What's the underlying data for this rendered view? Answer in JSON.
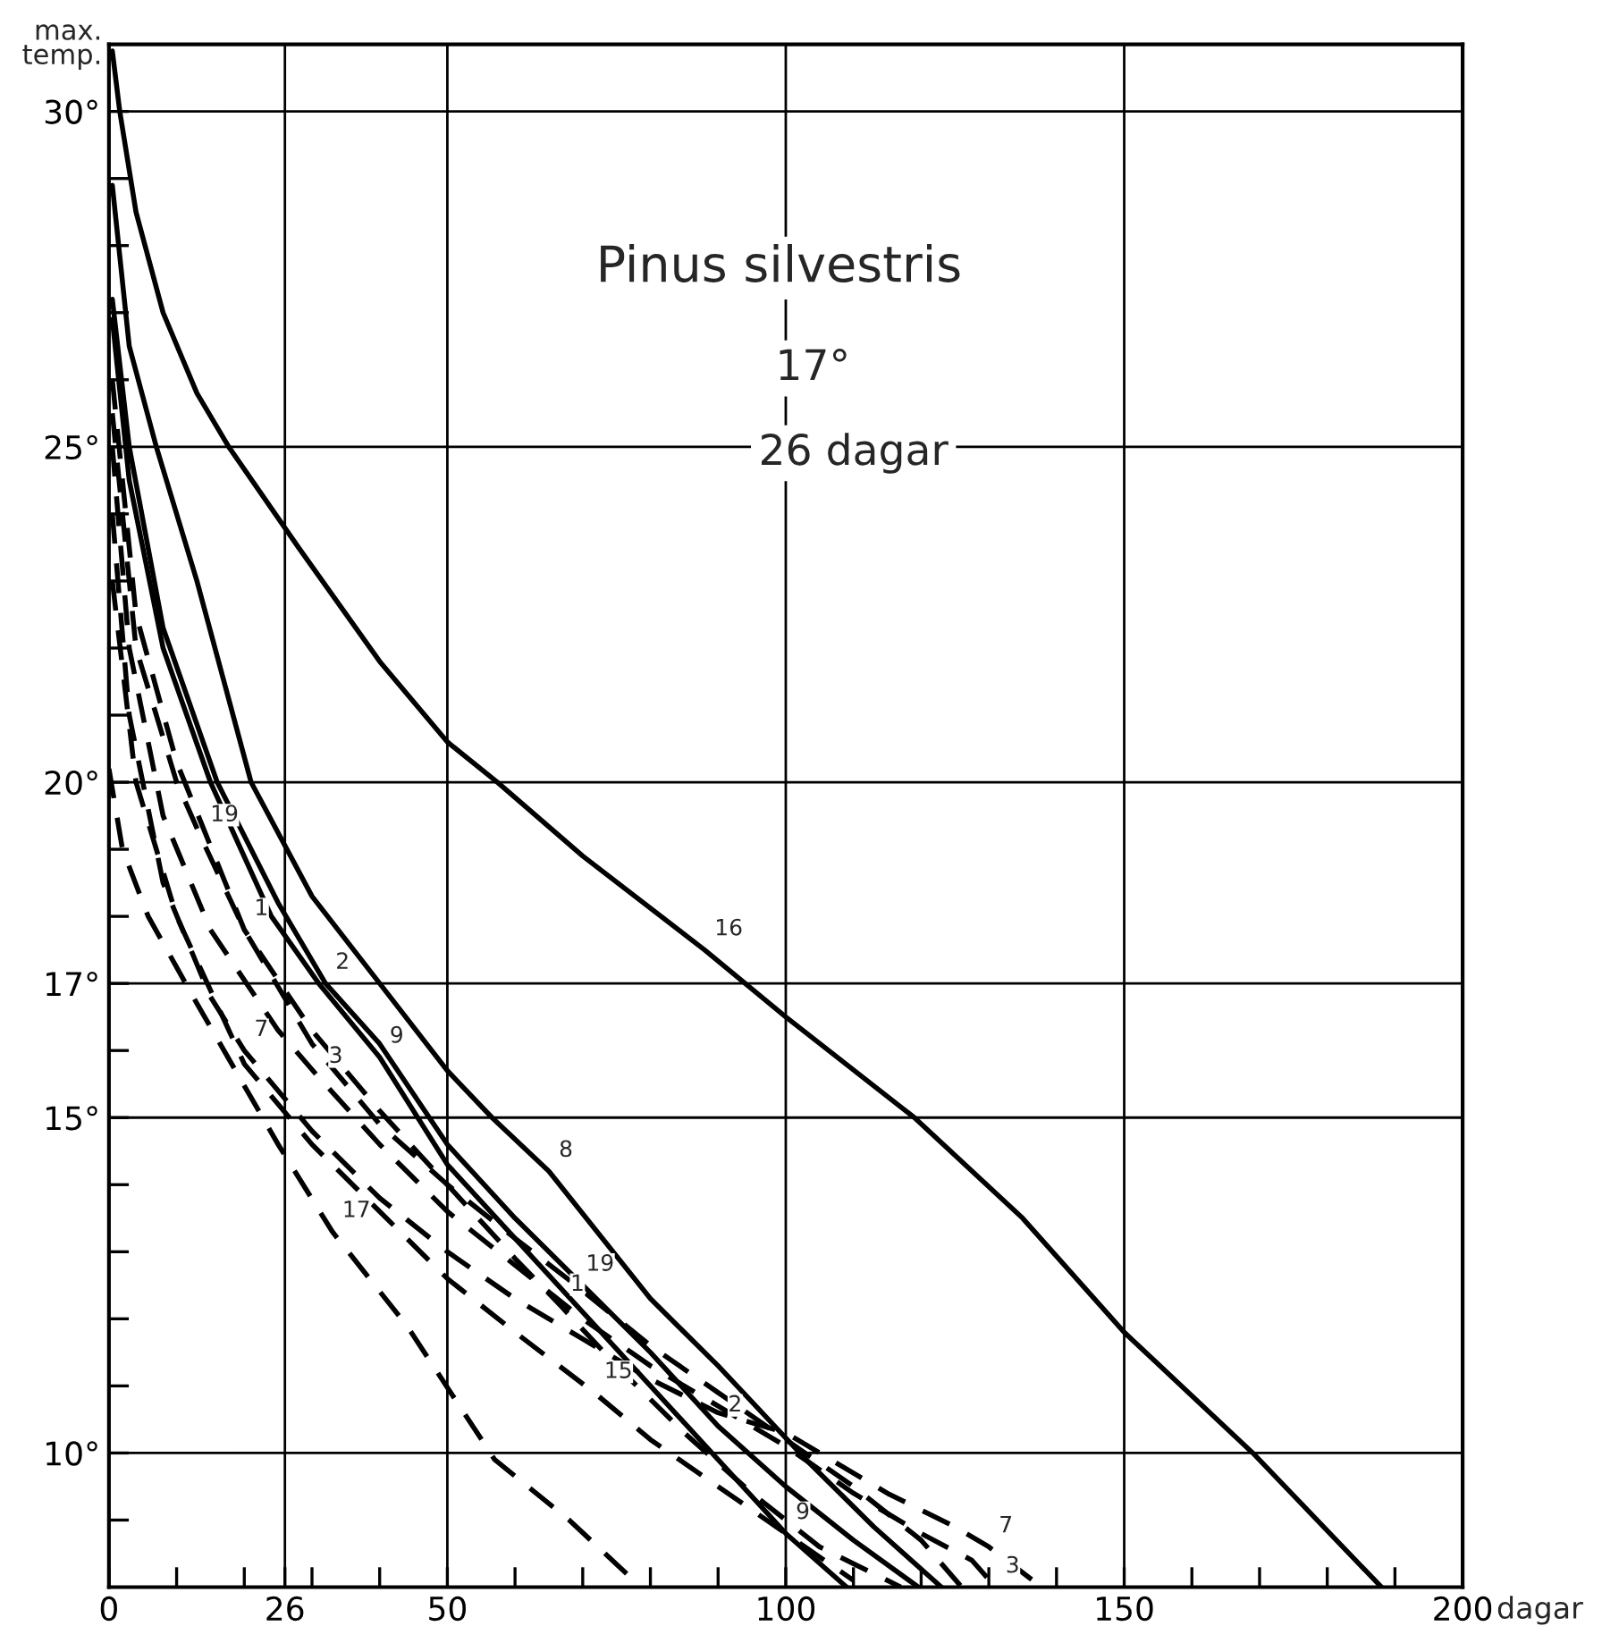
{
  "chart_data": {
    "type": "line",
    "title": "Pinus silvestris",
    "ylabel": "max. temp.",
    "xlabel": "dagar",
    "xlim": [
      0,
      200
    ],
    "ylim": [
      8,
      31
    ],
    "xticks": [
      0,
      {
        "value": 10,
        "label": null
      },
      {
        "value": 20,
        "label": null
      },
      26,
      {
        "value": 30,
        "label": null
      },
      {
        "value": 40,
        "label": null
      },
      50,
      {
        "value": 60,
        "label": null
      },
      {
        "value": 70,
        "label": null
      },
      {
        "value": 80,
        "label": null
      },
      {
        "value": 90,
        "label": null
      },
      100,
      {
        "value": 110,
        "label": null
      },
      {
        "value": 120,
        "label": null
      },
      {
        "value": 130,
        "label": null
      },
      {
        "value": 140,
        "label": null
      },
      150,
      {
        "value": 160,
        "label": null
      },
      {
        "value": 170,
        "label": null
      },
      {
        "value": 180,
        "label": null
      },
      {
        "value": 190,
        "label": null
      },
      200
    ],
    "yticks": [
      {
        "value": 9,
        "label": null
      },
      {
        "value": 10,
        "label": "10°"
      },
      {
        "value": 11,
        "label": null
      },
      {
        "value": 12,
        "label": null
      },
      {
        "value": 13,
        "label": null
      },
      {
        "value": 14,
        "label": null
      },
      {
        "value": 15,
        "label": "15°"
      },
      {
        "value": 16,
        "label": null
      },
      {
        "value": 17,
        "label": "17°"
      },
      {
        "value": 18,
        "label": null
      },
      {
        "value": 19,
        "label": null
      },
      {
        "value": 20,
        "label": "20°"
      },
      {
        "value": 21,
        "label": null
      },
      {
        "value": 22,
        "label": null
      },
      {
        "value": 23,
        "label": null
      },
      {
        "value": 24,
        "label": null
      },
      {
        "value": 25,
        "label": "25°"
      },
      {
        "value": 26,
        "label": null
      },
      {
        "value": 27,
        "label": null
      },
      {
        "value": 28,
        "label": null
      },
      {
        "value": 29,
        "label": null
      },
      {
        "value": 30,
        "label": "30°"
      }
    ],
    "grid": true,
    "legend": false,
    "marker": "none",
    "series": [
      {
        "color": "#000000",
        "line_style": "solid",
        "x": [
          0.5,
          1.6,
          4,
          8,
          13,
          17.7,
          28,
          40,
          50,
          57.4,
          70,
          88,
          100,
          119,
          135,
          150,
          169,
          188
        ],
        "values": [
          30.9,
          30,
          28.5,
          27,
          25.8,
          25,
          23.5,
          21.8,
          20.6,
          20,
          18.9,
          17.5,
          16.5,
          15,
          13.5,
          11.8,
          10,
          8
        ]
      },
      {
        "color": "#000000",
        "line_style": "solid",
        "x": [
          0.5,
          3,
          7,
          13,
          21,
          30,
          40,
          50,
          56.6,
          65,
          80,
          90,
          103,
          113,
          123
        ],
        "values": [
          28.9,
          26.5,
          25,
          23,
          20,
          18.3,
          17,
          15.7,
          15,
          14.2,
          12.3,
          11.3,
          9.9,
          8.9,
          8
        ]
      },
      {
        "color": "#000000",
        "line_style": "solid",
        "x": [
          0.5,
          3,
          8,
          15,
          24,
          31,
          40,
          50,
          60,
          70,
          80,
          90,
          100,
          109
        ],
        "values": [
          26.9,
          24.5,
          22,
          20,
          18,
          17,
          15.9,
          14.3,
          13.2,
          12.1,
          11,
          9.9,
          8.8,
          8
        ]
      },
      {
        "color": "#000000",
        "line_style": "solid",
        "x": [
          0.5,
          3,
          8,
          16,
          25,
          32,
          40,
          50,
          60,
          70,
          80,
          90,
          100,
          110,
          119.6
        ],
        "values": [
          27.2,
          25,
          22.3,
          20,
          18.2,
          17,
          16.1,
          14.6,
          13.5,
          12.5,
          11.5,
          10.4,
          9.5,
          8.7,
          8
        ]
      },
      {
        "color": "#000000",
        "line_style": "dashed",
        "x": [
          0,
          2,
          5.8,
          13,
          25,
          33,
          44,
          57,
          68,
          78.6
        ],
        "values": [
          20.2,
          19,
          18,
          16.7,
          14.6,
          13.3,
          11.9,
          9.9,
          9,
          8
        ]
      },
      {
        "color": "#000000",
        "line_style": "dashed",
        "x": [
          0.5,
          3,
          8,
          15,
          20,
          30,
          40,
          50,
          60,
          70,
          80,
          90,
          100,
          105,
          115,
          125,
          130,
          137.8
        ],
        "values": [
          24,
          21,
          18.5,
          16.8,
          16,
          14.8,
          13.8,
          13,
          12.3,
          11.7,
          11.1,
          10.6,
          10.3,
          10,
          9.4,
          8.9,
          8.6,
          8
        ]
      },
      {
        "color": "#000000",
        "line_style": "dashed",
        "x": [
          0.5,
          3,
          8,
          15,
          25,
          31,
          40,
          50,
          60,
          70,
          80,
          90,
          100,
          110,
          120,
          127.5,
          131
        ],
        "values": [
          25,
          22,
          19.5,
          17.8,
          16.3,
          15.6,
          14.6,
          13.6,
          12.8,
          12,
          11.3,
          10.7,
          10.1,
          9.4,
          8.8,
          8.4,
          8
        ]
      },
      {
        "color": "#000000",
        "line_style": "dashed",
        "x": [
          0.5,
          4,
          10,
          13.5,
          20,
          30,
          40,
          50,
          60,
          69,
          80,
          90,
          100,
          110,
          120,
          126
        ],
        "values": [
          25.5,
          22,
          20,
          19.2,
          17.8,
          16.1,
          14.9,
          14,
          13.2,
          12.5,
          11.6,
          10.9,
          10.2,
          9.5,
          8.7,
          8
        ]
      },
      {
        "color": "#000000",
        "line_style": "dashed",
        "x": [
          0.5,
          4,
          10,
          20,
          30,
          40,
          50,
          60,
          66.7,
          75,
          85,
          95,
          105,
          117
        ],
        "values": [
          26,
          22.5,
          20.3,
          17.8,
          16.3,
          15.1,
          14,
          12.9,
          12.2,
          11.3,
          10.3,
          9.4,
          8.6,
          8
        ]
      },
      {
        "color": "#000000",
        "line_style": "dashed",
        "x": [
          0.5,
          4,
          10,
          20,
          30,
          40,
          50,
          60,
          71.7,
          80,
          90,
          100,
          110
        ],
        "values": [
          23,
          20,
          18,
          15.8,
          14.6,
          13.6,
          12.6,
          11.8,
          10.9,
          10.2,
          9.5,
          8.8,
          8.1
        ]
      }
    ],
    "annotations": [
      "17°",
      "26 dagar",
      {
        "text": "16",
        "x": 88,
        "y": 17.5
      },
      {
        "text": "8",
        "x": 65,
        "y": 14.2
      },
      {
        "text": "9",
        "x": 40,
        "y": 15.9
      },
      {
        "text": "2",
        "x": 32,
        "y": 17
      },
      {
        "text": "3",
        "x": 31,
        "y": 15.6
      },
      {
        "text": "7",
        "x": 20,
        "y": 16
      },
      {
        "text": "1",
        "x": 20,
        "y": 17.8
      },
      {
        "text": "19",
        "x": 13.5,
        "y": 19.2
      },
      {
        "text": "17",
        "x": 33,
        "y": 13.3
      },
      {
        "text": "19",
        "x": 69,
        "y": 12.5
      },
      {
        "text": "1",
        "x": 66.7,
        "y": 12.2
      },
      {
        "text": "15",
        "x": 71.7,
        "y": 10.9
      },
      {
        "text": "2",
        "x": 90,
        "y": 10.4
      },
      {
        "text": "9",
        "x": 100,
        "y": 8.8
      },
      {
        "text": "7",
        "x": 130,
        "y": 8.6
      },
      {
        "text": "3",
        "x": 131,
        "y": 8
      }
    ]
  }
}
